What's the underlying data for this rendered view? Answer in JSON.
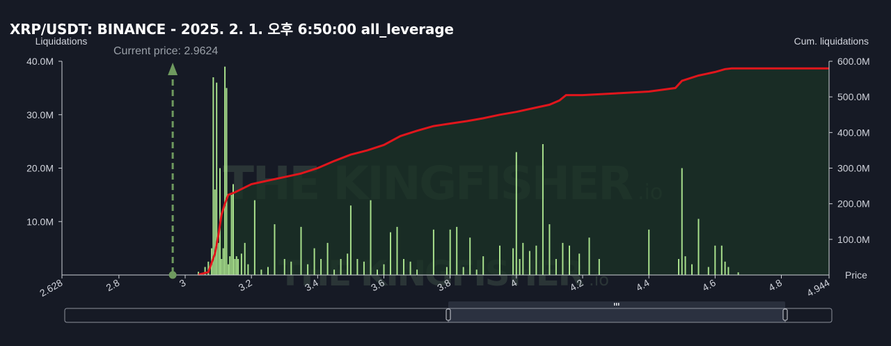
{
  "title": "XRP/USDT: BINANCE - 2025. 2. 1. 오후 6:50:00 all_leverage",
  "watermark": {
    "name": "THE KINGFISHER",
    "suffix": ".io"
  },
  "colors": {
    "background": "#161a25",
    "bar": "#a8e08c",
    "cum_line": "#e0161c",
    "area": "#1b3326",
    "current_price": "#6f9a5f"
  },
  "chart_data": {
    "type": "bar",
    "title": "XRP/USDT: BINANCE - 2025. 2. 1. 오후 6:50:00 all_leverage",
    "xlabel": "Price",
    "ylabel": "Liquidations",
    "y2label": "Cum. liquidations",
    "xlim": [
      2.628,
      4.944
    ],
    "ylim": [
      0,
      40000000
    ],
    "y2lim": [
      0,
      600000000
    ],
    "x_ticks": [
      "2.628",
      "2.8",
      "3",
      "3.2",
      "3.4",
      "3.6",
      "3.8",
      "4",
      "4.2",
      "4.4",
      "4.6",
      "4.8",
      "4.944"
    ],
    "x_tick_values": [
      2.628,
      2.8,
      3,
      3.2,
      3.4,
      3.6,
      3.8,
      4,
      4.2,
      4.4,
      4.6,
      4.8,
      4.944
    ],
    "y_ticks": [
      "40.0M",
      "30.0M",
      "20.0M",
      "10.0M"
    ],
    "y_tick_values": [
      40000000,
      30000000,
      20000000,
      10000000
    ],
    "y2_ticks": [
      "600.0M",
      "500.0M",
      "400.0M",
      "300.0M",
      "200.0M",
      "100.0M"
    ],
    "y2_tick_values": [
      600000000,
      500000000,
      400000000,
      300000000,
      200000000,
      100000000
    ],
    "current_price": {
      "label": "Current price: 2.9624",
      "value": 2.9624
    },
    "series": [
      {
        "name": "Liquidations",
        "type": "bar",
        "x": [
          3.04,
          3.06,
          3.07,
          3.08,
          3.085,
          3.09,
          3.095,
          3.1,
          3.105,
          3.11,
          3.115,
          3.12,
          3.125,
          3.13,
          3.135,
          3.14,
          3.145,
          3.15,
          3.155,
          3.16,
          3.17,
          3.18,
          3.19,
          3.21,
          3.23,
          3.25,
          3.27,
          3.3,
          3.32,
          3.35,
          3.37,
          3.39,
          3.41,
          3.43,
          3.45,
          3.47,
          3.49,
          3.5,
          3.52,
          3.54,
          3.56,
          3.58,
          3.6,
          3.62,
          3.64,
          3.66,
          3.68,
          3.7,
          3.75,
          3.79,
          3.8,
          3.82,
          3.84,
          3.86,
          3.88,
          3.9,
          3.95,
          3.99,
          4,
          4.01,
          4.02,
          4.04,
          4.06,
          4.08,
          4.1,
          4.12,
          4.14,
          4.16,
          4.19,
          4.22,
          4.25,
          4.4,
          4.49,
          4.5,
          4.51,
          4.53,
          4.55,
          4.58,
          4.6,
          4.62,
          4.63,
          4.64,
          4.67
        ],
        "values": [
          600000,
          1500000,
          2500000,
          5000000,
          37000000,
          16000000,
          36000000,
          6000000,
          20000000,
          3000000,
          5000000,
          39000000,
          35000000,
          2000000,
          3500000,
          15000000,
          17000000,
          3000000,
          3500000,
          3000000,
          4000000,
          6000000,
          2000000,
          14000000,
          1000000,
          1500000,
          9500000,
          3000000,
          2500000,
          9000000,
          2000000,
          5000000,
          3000000,
          6000000,
          1000000,
          3000000,
          4000000,
          13000000,
          3000000,
          2500000,
          14000000,
          1000000,
          2000000,
          8000000,
          9000000,
          3000000,
          2500000,
          1000000,
          8500000,
          1500000,
          8500000,
          9000000,
          1500000,
          7000000,
          1000000,
          3500000,
          5500000,
          5000000,
          23000000,
          3000000,
          6000000,
          4500000,
          5500000,
          24500000,
          9500000,
          3000000,
          6000000,
          5500000,
          4000000,
          7000000,
          3000000,
          8500000,
          3000000,
          20000000,
          3500000,
          2000000,
          10500000,
          1500000,
          5500000,
          5500000,
          2500000,
          1500000,
          500000
        ]
      },
      {
        "name": "Cum. liquidations",
        "type": "line",
        "x": [
          3.04,
          3.07,
          3.09,
          3.1,
          3.11,
          3.12,
          3.13,
          3.15,
          3.2,
          3.3,
          3.35,
          3.4,
          3.45,
          3.5,
          3.55,
          3.6,
          3.65,
          3.7,
          3.75,
          3.8,
          3.85,
          3.9,
          3.95,
          4,
          4.05,
          4.1,
          4.13,
          4.15,
          4.2,
          4.3,
          4.4,
          4.48,
          4.5,
          4.55,
          4.6,
          4.63,
          4.65,
          4.944
        ],
        "values": [
          1000000,
          8000000,
          60000000,
          110000000,
          170000000,
          200000000,
          225000000,
          232000000,
          255000000,
          275000000,
          285000000,
          300000000,
          320000000,
          338000000,
          350000000,
          365000000,
          390000000,
          405000000,
          418000000,
          425000000,
          432000000,
          440000000,
          450000000,
          458000000,
          468000000,
          478000000,
          490000000,
          505000000,
          505000000,
          510000000,
          515000000,
          525000000,
          545000000,
          560000000,
          570000000,
          578000000,
          580000000,
          580000000
        ]
      }
    ],
    "grid": false,
    "legend": "none"
  }
}
